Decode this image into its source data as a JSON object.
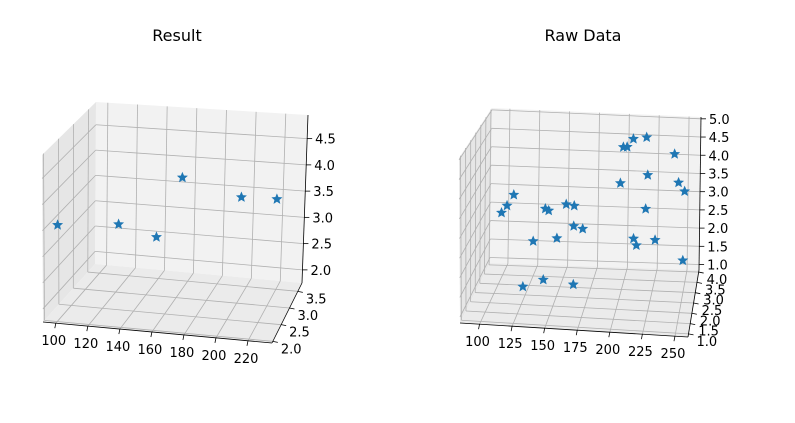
{
  "chart_data": [
    {
      "type": "scatter3d",
      "title": "Result",
      "marker": "star",
      "color": "#1f77b4",
      "x_ticks": [
        "100",
        "120",
        "140",
        "160",
        "180",
        "200",
        "220"
      ],
      "y_ticks": [
        "2.0",
        "2.5",
        "3.0",
        "3.5"
      ],
      "z_ticks": [
        "2.0",
        "2.5",
        "3.0",
        "3.5",
        "4.0",
        "4.5"
      ],
      "points": [
        {
          "x": 95,
          "y": 2.3,
          "z": 3.4
        },
        {
          "x": 130,
          "y": 2.5,
          "z": 3.3
        },
        {
          "x": 140,
          "y": 3.4,
          "z": 2.6
        },
        {
          "x": 170,
          "y": 2.5,
          "z": 4.1
        },
        {
          "x": 195,
          "y": 3.5,
          "z": 3.4
        },
        {
          "x": 230,
          "y": 2.5,
          "z": 3.7
        }
      ]
    },
    {
      "type": "scatter3d",
      "title": "Raw Data",
      "marker": "star",
      "color": "#1f77b4",
      "x_ticks": [
        "100",
        "125",
        "150",
        "175",
        "200",
        "225",
        "250"
      ],
      "y_ticks": [
        "1.0",
        "1.5",
        "2.0",
        "2.5",
        "3.0",
        "3.5",
        "4.0"
      ],
      "z_ticks": [
        "1.0",
        "1.5",
        "2.0",
        "2.5",
        "3.0",
        "3.5",
        "4.0",
        "4.5",
        "5.0"
      ],
      "points": [
        {
          "x": 105,
          "y": 2.6,
          "z": 2.9
        },
        {
          "x": 108,
          "y": 2.8,
          "z": 3.0
        },
        {
          "x": 112,
          "y": 3.0,
          "z": 3.2
        },
        {
          "x": 125,
          "y": 2.2,
          "z": 1.2
        },
        {
          "x": 128,
          "y": 3.0,
          "z": 2.0
        },
        {
          "x": 140,
          "y": 2.4,
          "z": 1.3
        },
        {
          "x": 140,
          "y": 2.6,
          "z": 3.0
        },
        {
          "x": 145,
          "y": 2.2,
          "z": 3.1
        },
        {
          "x": 150,
          "y": 2.5,
          "z": 2.3
        },
        {
          "x": 155,
          "y": 2.9,
          "z": 3.0
        },
        {
          "x": 158,
          "y": 3.5,
          "z": 2.2
        },
        {
          "x": 162,
          "y": 2.8,
          "z": 3.0
        },
        {
          "x": 165,
          "y": 2.2,
          "z": 1.3
        },
        {
          "x": 170,
          "y": 2.6,
          "z": 2.5
        },
        {
          "x": 198,
          "y": 3.0,
          "z": 3.5
        },
        {
          "x": 200,
          "y": 3.0,
          "z": 4.4
        },
        {
          "x": 205,
          "y": 2.5,
          "z": 4.5
        },
        {
          "x": 208,
          "y": 3.0,
          "z": 4.6
        },
        {
          "x": 210,
          "y": 2.8,
          "z": 2.2
        },
        {
          "x": 212,
          "y": 2.9,
          "z": 2.0
        },
        {
          "x": 218,
          "y": 3.2,
          "z": 4.6
        },
        {
          "x": 218,
          "y": 3.2,
          "z": 2.8
        },
        {
          "x": 220,
          "y": 3.0,
          "z": 3.7
        },
        {
          "x": 225,
          "y": 3.5,
          "z": 1.9
        },
        {
          "x": 243,
          "y": 2.4,
          "z": 4.3
        },
        {
          "x": 246,
          "y": 2.6,
          "z": 3.6
        },
        {
          "x": 250,
          "y": 3.0,
          "z": 3.3
        },
        {
          "x": 252,
          "y": 2.0,
          "z": 2.0
        }
      ]
    }
  ]
}
